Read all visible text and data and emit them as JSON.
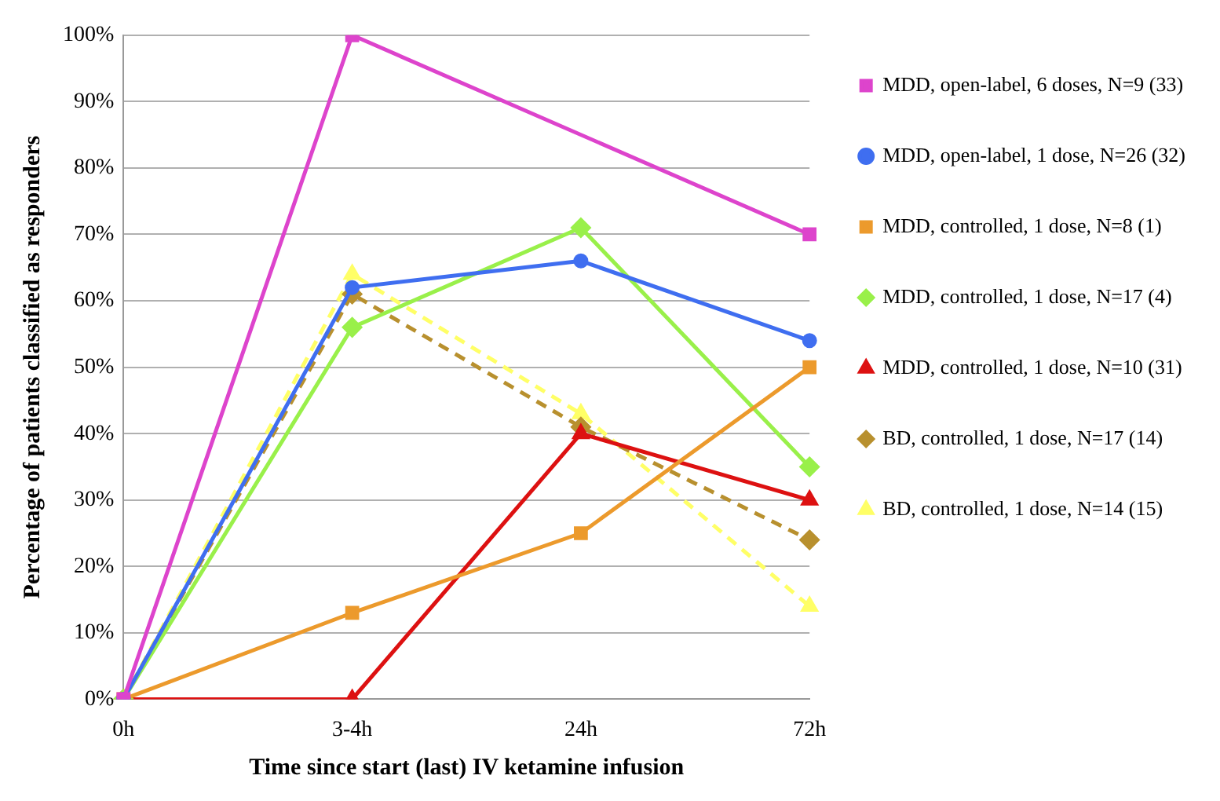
{
  "chart_data": {
    "type": "line",
    "xlabel": "Time since start (last) IV ketamine infusion",
    "ylabel": "Percentage of patients classified as responders",
    "categories": [
      "0h",
      "3-4h",
      "24h",
      "72h"
    ],
    "ylim": [
      0,
      100
    ],
    "yticks": [
      {
        "value": 0,
        "label": "0%"
      },
      {
        "value": 10,
        "label": "10%"
      },
      {
        "value": 20,
        "label": "20%"
      },
      {
        "value": 30,
        "label": "30%"
      },
      {
        "value": 40,
        "label": "40%"
      },
      {
        "value": 50,
        "label": "50%"
      },
      {
        "value": 60,
        "label": "60%"
      },
      {
        "value": 70,
        "label": "70%"
      },
      {
        "value": 80,
        "label": "80%"
      },
      {
        "value": 90,
        "label": "90%"
      },
      {
        "value": 100,
        "label": "100%"
      }
    ],
    "grid": "y",
    "legend": "right",
    "series": [
      {
        "name": "MDD, open-label, 6 doses, N=9 (33)",
        "color": "#dd44cc",
        "marker": "square",
        "line_style": "solid",
        "values": [
          0,
          100,
          null,
          70
        ]
      },
      {
        "name": "MDD, open-label, 1 dose, N=26 (32)",
        "color": "#3f6ef0",
        "marker": "circle",
        "line_style": "solid",
        "values": [
          0,
          62,
          66,
          54
        ]
      },
      {
        "name": "MDD, controlled, 1 dose, N=8 (1)",
        "color": "#ec9a2c",
        "marker": "square",
        "line_style": "solid",
        "values": [
          0,
          13,
          25,
          50
        ]
      },
      {
        "name": "MDD, controlled, 1 dose, N=17 (4)",
        "color": "#99f04a",
        "marker": "diamond",
        "line_style": "solid",
        "values": [
          0,
          56,
          71,
          35
        ]
      },
      {
        "name": "MDD, controlled, 1 dose, N=10 (31)",
        "color": "#dd1111",
        "marker": "triangle",
        "line_style": "solid",
        "values": [
          0,
          0,
          40,
          30
        ]
      },
      {
        "name": "BD, controlled, 1 dose, N=17 (14)",
        "color": "#b8902e",
        "marker": "diamond",
        "line_style": "dashed",
        "values": [
          0,
          61,
          41,
          24
        ]
      },
      {
        "name": "BD, controlled, 1 dose, N=14 (15)",
        "color": "#ffff66",
        "marker": "triangle",
        "line_style": "dashed",
        "values": [
          0,
          64,
          43,
          14
        ]
      }
    ]
  }
}
